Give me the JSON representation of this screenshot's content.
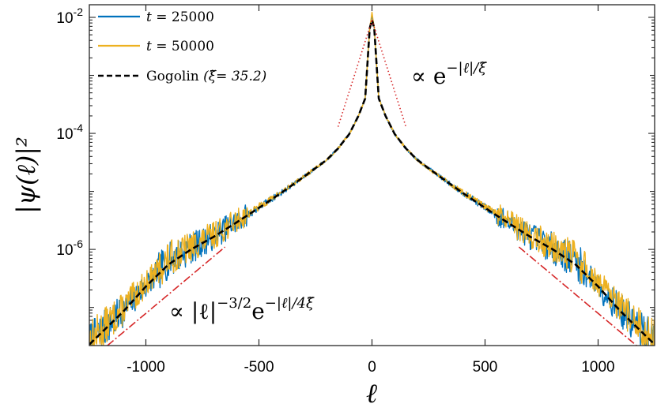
{
  "chart_data": {
    "type": "line",
    "title": "",
    "xlabel": "ℓ",
    "ylabel": "|ψ(ℓ)|²",
    "xlim": [
      -1250,
      1250
    ],
    "ylim": [
      2.2e-08,
      0.0165
    ],
    "yscale": "log",
    "x_ticks": [
      {
        "value": -1000,
        "label": "-1000"
      },
      {
        "value": -500,
        "label": "-500"
      },
      {
        "value": 0,
        "label": "0"
      },
      {
        "value": 500,
        "label": "500"
      },
      {
        "value": 1000,
        "label": "1000"
      }
    ],
    "y_ticks": [
      {
        "value": 0.01,
        "base": "10",
        "exp": "-2"
      },
      {
        "value": 0.0001,
        "base": "10",
        "exp": "-4"
      },
      {
        "value": 1e-06,
        "base": "10",
        "exp": "-6"
      }
    ],
    "legend_position": "top-left",
    "series": [
      {
        "name": "t = 25000",
        "name_var": "t",
        "name_value": "= 25000",
        "color": "#0072BD",
        "style": "solid",
        "seed": 7,
        "points": [
          [
            -1250,
            2.4e-08
          ],
          [
            -1100,
            8.8e-08
          ],
          [
            -1000,
            2.4e-07
          ],
          [
            -900,
            6.4e-07
          ],
          [
            -800,
            1.05e-06
          ],
          [
            -700,
            1.7e-06
          ],
          [
            -600,
            3e-06
          ],
          [
            -500,
            5.3e-06
          ],
          [
            -400,
            9.6e-06
          ],
          [
            -300,
            1.8e-05
          ],
          [
            -200,
            3.5e-05
          ],
          [
            -150,
            5.5e-05
          ],
          [
            -100,
            9.8e-05
          ],
          [
            -60,
            0.0002
          ],
          [
            -30,
            0.0004
          ],
          [
            -10,
            0.0065
          ],
          [
            0,
            0.011
          ],
          [
            10,
            0.0065
          ],
          [
            30,
            0.0004
          ],
          [
            60,
            0.0002
          ],
          [
            100,
            9.8e-05
          ],
          [
            150,
            5.5e-05
          ],
          [
            200,
            3.5e-05
          ],
          [
            300,
            1.8e-05
          ],
          [
            400,
            9.6e-06
          ],
          [
            500,
            5.3e-06
          ],
          [
            600,
            3e-06
          ],
          [
            700,
            1.7e-06
          ],
          [
            800,
            1.05e-06
          ],
          [
            900,
            6.4e-07
          ],
          [
            1000,
            2.4e-07
          ],
          [
            1100,
            8.8e-08
          ],
          [
            1250,
            2.4e-08
          ]
        ]
      },
      {
        "name": "t = 50000",
        "name_var": "t",
        "name_value": "= 50000",
        "color": "#EDB120",
        "style": "solid",
        "seed": 13,
        "points": [
          [
            -1250,
            2.6e-08
          ],
          [
            -1100,
            9.5e-08
          ],
          [
            -1000,
            2.6e-07
          ],
          [
            -900,
            6.9e-07
          ],
          [
            -800,
            1.1e-06
          ],
          [
            -700,
            1.75e-06
          ],
          [
            -600,
            3.1e-06
          ],
          [
            -500,
            5.4e-06
          ],
          [
            -400,
            9.7e-06
          ],
          [
            -300,
            1.8e-05
          ],
          [
            -200,
            3.5e-05
          ],
          [
            -150,
            5.5e-05
          ],
          [
            -100,
            9.8e-05
          ],
          [
            -60,
            0.0002
          ],
          [
            -30,
            0.0004
          ],
          [
            -10,
            0.0066
          ],
          [
            0,
            0.012
          ],
          [
            10,
            0.0066
          ],
          [
            30,
            0.0004
          ],
          [
            60,
            0.0002
          ],
          [
            100,
            9.8e-05
          ],
          [
            150,
            5.5e-05
          ],
          [
            200,
            3.5e-05
          ],
          [
            300,
            1.8e-05
          ],
          [
            400,
            9.7e-06
          ],
          [
            500,
            5.4e-06
          ],
          [
            600,
            3.1e-06
          ],
          [
            700,
            1.75e-06
          ],
          [
            800,
            1.1e-06
          ],
          [
            900,
            6.9e-07
          ],
          [
            1000,
            2.6e-07
          ],
          [
            1100,
            9.5e-08
          ],
          [
            1250,
            2.6e-08
          ]
        ]
      },
      {
        "name": "Gogolin (ξ̃ = 35.2)",
        "name_label": "Gogolin",
        "name_param": "(ξ̃= 35.2)",
        "color": "#000000",
        "style": "dashed",
        "points": [
          [
            -1250,
            2.3e-08
          ],
          [
            -1100,
            8.5e-08
          ],
          [
            -1000,
            2.3e-07
          ],
          [
            -900,
            5.5e-07
          ],
          [
            -800,
            1e-06
          ],
          [
            -700,
            1.65e-06
          ],
          [
            -600,
            2.9e-06
          ],
          [
            -500,
            5.2e-06
          ],
          [
            -400,
            9.5e-06
          ],
          [
            -300,
            1.8e-05
          ],
          [
            -200,
            3.5e-05
          ],
          [
            -150,
            5.5e-05
          ],
          [
            -100,
            9.8e-05
          ],
          [
            -60,
            0.0002
          ],
          [
            -30,
            0.0004
          ],
          [
            -10,
            0.0065
          ],
          [
            0,
            0.009
          ],
          [
            10,
            0.0065
          ],
          [
            30,
            0.0004
          ],
          [
            60,
            0.0002
          ],
          [
            100,
            9.8e-05
          ],
          [
            150,
            5.5e-05
          ],
          [
            200,
            3.5e-05
          ],
          [
            300,
            1.8e-05
          ],
          [
            400,
            9.5e-06
          ],
          [
            500,
            5.2e-06
          ],
          [
            600,
            2.9e-06
          ],
          [
            700,
            1.65e-06
          ],
          [
            800,
            1e-06
          ],
          [
            900,
            5.5e-07
          ],
          [
            1000,
            2.3e-07
          ],
          [
            1100,
            8.5e-08
          ],
          [
            1250,
            2.3e-08
          ]
        ]
      }
    ],
    "reference_lines": [
      {
        "name": "exponential",
        "color": "#D62728",
        "style": "dotted",
        "left": [
          [
            -150,
            0.00013
          ],
          [
            0,
            0.009
          ]
        ],
        "right": [
          [
            0,
            0.009
          ],
          [
            150,
            0.00013
          ]
        ]
      },
      {
        "name": "power-exponential",
        "color": "#D62728",
        "style": "dashdot",
        "left": [
          [
            -1170,
            2.2e-08
          ],
          [
            -650,
            1.1e-06
          ]
        ],
        "right": [
          [
            650,
            1.1e-06
          ],
          [
            1170,
            2.2e-08
          ]
        ]
      }
    ],
    "annotations": {
      "exp_main": "∝ e",
      "exp_sup": "−|ℓ|/ξ̃",
      "pow_main": "∝ |ℓ|",
      "pow_sup1": "−3/2",
      "pow_mid": "e",
      "pow_sup2": "−|ℓ|/4ξ̃"
    }
  }
}
